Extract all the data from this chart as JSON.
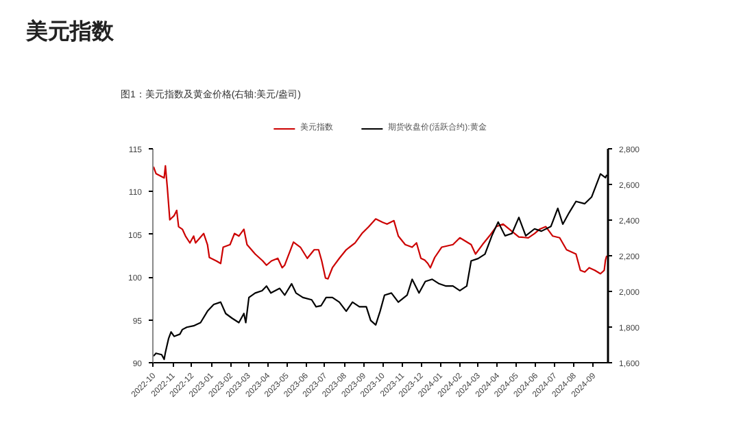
{
  "chart_data": {
    "type": "line",
    "title": "美元指数",
    "subtitle": "图1：美元指数及黄金价格(右轴:美元/盎司)",
    "xlim": [
      "2022-09-30",
      "2024-09-24"
    ],
    "xticks": [
      {
        "value": "2022-10-01",
        "label": "2022-10"
      },
      {
        "value": "2022-11-01",
        "label": "2022-11"
      },
      {
        "value": "2022-12-01",
        "label": "2022-12"
      },
      {
        "value": "2023-01-01",
        "label": "2023-01"
      },
      {
        "value": "2023-02-01",
        "label": "2023-02"
      },
      {
        "value": "2023-03-01",
        "label": "2023-03"
      },
      {
        "value": "2023-04-01",
        "label": "2023-04"
      },
      {
        "value": "2023-05-01",
        "label": "2023-05"
      },
      {
        "value": "2023-06-01",
        "label": "2023-06"
      },
      {
        "value": "2023-07-01",
        "label": "2023-07"
      },
      {
        "value": "2023-08-01",
        "label": "2023-08"
      },
      {
        "value": "2023-09-01",
        "label": "2023-09"
      },
      {
        "value": "2023-10-01",
        "label": "2023-10"
      },
      {
        "value": "2023-11-01",
        "label": "2023-11"
      },
      {
        "value": "2023-12-01",
        "label": "2023-12"
      },
      {
        "value": "2024-01-01",
        "label": "2024-01"
      },
      {
        "value": "2024-02-01",
        "label": "2024-02"
      },
      {
        "value": "2024-03-01",
        "label": "2024-03"
      },
      {
        "value": "2024-04-01",
        "label": "2024-04"
      },
      {
        "value": "2024-05-01",
        "label": "2024-05"
      },
      {
        "value": "2024-06-01",
        "label": "2024-06"
      },
      {
        "value": "2024-07-01",
        "label": "2024-07"
      },
      {
        "value": "2024-08-01",
        "label": "2024-08"
      },
      {
        "value": "2024-09-01",
        "label": "2024-09"
      }
    ],
    "ylim": [
      90,
      115
    ],
    "yticks": [
      90,
      95,
      100,
      105,
      110,
      115
    ],
    "y2lim": [
      1600,
      2800
    ],
    "y2ticks": [
      {
        "value": 1600,
        "label": "1,600"
      },
      {
        "value": 1800,
        "label": "1,800"
      },
      {
        "value": 2000,
        "label": "2,000"
      },
      {
        "value": 2200,
        "label": "2,200"
      },
      {
        "value": 2400,
        "label": "2,400"
      },
      {
        "value": 2600,
        "label": "2,600"
      },
      {
        "value": 2800,
        "label": "2,800"
      }
    ],
    "legend": "top",
    "grid": false,
    "series": [
      {
        "name": "美元指数",
        "color": "#cc0000",
        "x": [
          "2022-10-01",
          "2022-10-05",
          "2022-10-18",
          "2022-10-20",
          "2022-10-23",
          "2022-10-27",
          "2022-11-03",
          "2022-11-07",
          "2022-11-10",
          "2022-11-16",
          "2022-11-21",
          "2022-11-28",
          "2022-12-04",
          "2022-12-07",
          "2022-12-20",
          "2022-12-26",
          "2022-12-29",
          "2023-01-09",
          "2023-01-16",
          "2023-01-20",
          "2023-01-31",
          "2023-02-07",
          "2023-02-14",
          "2023-02-22",
          "2023-02-27",
          "2023-03-12",
          "2023-03-24",
          "2023-03-30",
          "2023-04-07",
          "2023-04-17",
          "2023-04-24",
          "2023-04-28",
          "2023-05-12",
          "2023-05-23",
          "2023-06-03",
          "2023-06-14",
          "2023-06-21",
          "2023-06-26",
          "2023-07-02",
          "2023-07-06",
          "2023-07-13",
          "2023-07-24",
          "2023-08-04",
          "2023-08-18",
          "2023-08-29",
          "2023-09-09",
          "2023-09-20",
          "2023-10-01",
          "2023-10-08",
          "2023-10-19",
          "2023-10-26",
          "2023-11-06",
          "2023-11-17",
          "2023-11-24",
          "2023-12-01",
          "2023-12-07",
          "2023-12-12",
          "2023-12-16",
          "2023-12-23",
          "2024-01-03",
          "2024-01-21",
          "2024-02-01",
          "2024-02-19",
          "2024-02-26",
          "2024-03-08",
          "2024-03-19",
          "2024-03-30",
          "2024-04-10",
          "2024-04-20",
          "2024-05-05",
          "2024-05-20",
          "2024-05-30",
          "2024-06-07",
          "2024-06-17",
          "2024-06-28",
          "2024-07-09",
          "2024-07-20",
          "2024-08-04",
          "2024-08-11",
          "2024-08-18",
          "2024-08-25",
          "2024-09-03",
          "2024-09-12",
          "2024-09-18",
          "2024-09-20",
          "2024-09-22"
        ],
        "values": [
          112.9,
          112.1,
          111.6,
          113.0,
          110.5,
          106.7,
          107.2,
          107.8,
          105.9,
          105.6,
          104.8,
          104.0,
          104.8,
          104.0,
          105.1,
          103.8,
          102.3,
          101.9,
          101.6,
          103.5,
          103.8,
          105.1,
          104.8,
          105.6,
          103.8,
          102.7,
          101.9,
          101.4,
          101.9,
          102.2,
          101.1,
          101.4,
          104.1,
          103.5,
          102.2,
          103.2,
          103.2,
          101.9,
          99.9,
          99.8,
          101.1,
          102.2,
          103.2,
          104.0,
          105.1,
          105.9,
          106.8,
          106.4,
          106.2,
          106.6,
          104.8,
          103.8,
          103.5,
          104.0,
          102.2,
          102.0,
          101.6,
          101.1,
          102.3,
          103.5,
          103.8,
          104.6,
          103.8,
          102.7,
          103.8,
          104.8,
          105.9,
          106.2,
          105.6,
          104.7,
          104.6,
          105.1,
          105.6,
          105.9,
          104.8,
          104.6,
          103.2,
          102.7,
          100.8,
          100.6,
          101.1,
          100.8,
          100.4,
          100.8,
          102.0,
          102.5
        ]
      },
      {
        "name": "期货收盘价(活跃合约):黄金",
        "color": "#000000",
        "axis": "y2",
        "x": [
          "2022-10-01",
          "2022-10-05",
          "2022-10-14",
          "2022-10-18",
          "2022-10-20",
          "2022-10-25",
          "2022-10-29",
          "2022-11-03",
          "2022-11-12",
          "2022-11-16",
          "2022-11-23",
          "2022-12-04",
          "2022-12-15",
          "2022-12-26",
          "2023-01-05",
          "2023-01-16",
          "2023-01-24",
          "2023-02-03",
          "2023-02-14",
          "2023-02-22",
          "2023-02-25",
          "2023-03-02",
          "2023-03-12",
          "2023-03-23",
          "2023-03-30",
          "2023-04-06",
          "2023-04-20",
          "2023-04-28",
          "2023-05-09",
          "2023-05-16",
          "2023-05-27",
          "2023-06-10",
          "2023-06-17",
          "2023-06-25",
          "2023-07-03",
          "2023-07-13",
          "2023-07-24",
          "2023-08-04",
          "2023-08-14",
          "2023-08-25",
          "2023-09-05",
          "2023-09-12",
          "2023-09-20",
          "2023-09-27",
          "2023-10-04",
          "2023-10-15",
          "2023-10-26",
          "2023-11-09",
          "2023-11-17",
          "2023-11-28",
          "2023-12-08",
          "2023-12-19",
          "2023-12-30",
          "2024-01-10",
          "2024-01-21",
          "2024-02-01",
          "2024-02-12",
          "2024-02-19",
          "2024-03-01",
          "2024-03-12",
          "2024-03-23",
          "2024-04-02",
          "2024-04-13",
          "2024-04-24",
          "2024-05-05",
          "2024-05-16",
          "2024-05-30",
          "2024-06-10",
          "2024-06-25",
          "2024-07-06",
          "2024-07-14",
          "2024-07-24",
          "2024-08-04",
          "2024-08-18",
          "2024-08-29",
          "2024-09-05",
          "2024-09-12",
          "2024-09-20",
          "2024-09-22"
        ],
        "values": [
          1637,
          1653,
          1645,
          1619,
          1658,
          1735,
          1773,
          1748,
          1760,
          1786,
          1799,
          1807,
          1825,
          1889,
          1927,
          1940,
          1876,
          1850,
          1825,
          1876,
          1825,
          1966,
          1991,
          2004,
          2030,
          1991,
          2017,
          1979,
          2043,
          1991,
          1966,
          1953,
          1914,
          1920,
          1966,
          1966,
          1940,
          1889,
          1940,
          1914,
          1914,
          1837,
          1812,
          1889,
          1979,
          1991,
          1940,
          1979,
          2068,
          1991,
          2056,
          2068,
          2043,
          2030,
          2030,
          2004,
          2030,
          2171,
          2184,
          2209,
          2312,
          2389,
          2312,
          2325,
          2415,
          2312,
          2351,
          2338,
          2364,
          2466,
          2377,
          2441,
          2505,
          2492,
          2530,
          2595,
          2659,
          2638,
          2654
        ]
      }
    ]
  }
}
